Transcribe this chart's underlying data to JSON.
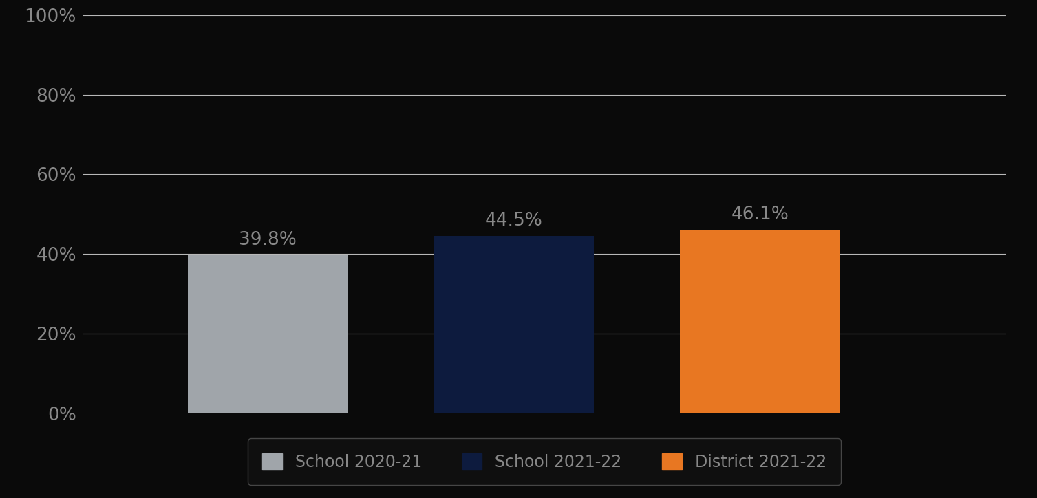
{
  "categories": [
    "School 2020-21",
    "School 2021-22",
    "District 2021-22"
  ],
  "values": [
    39.8,
    44.5,
    46.1
  ],
  "bar_colors": [
    "#a0a5aa",
    "#0d1b3e",
    "#e87722"
  ],
  "label_texts": [
    "39.8%",
    "44.5%",
    "46.1%"
  ],
  "ylim": [
    0,
    100
  ],
  "yticks": [
    0,
    20,
    40,
    60,
    80,
    100
  ],
  "ytick_labels": [
    "0%",
    "20%",
    "40%",
    "60%",
    "80%",
    "100%"
  ],
  "background_color": "#0a0a0a",
  "axes_background": "#0a0a0a",
  "text_color": "#888888",
  "label_color": "#888888",
  "grid_color": "#cccccc",
  "legend_items": [
    "School 2020-21",
    "School 2021-22",
    "District 2021-22"
  ],
  "legend_colors": [
    "#a0a5aa",
    "#0d1b3e",
    "#e87722"
  ],
  "bar_width": 0.65,
  "x_positions": [
    1,
    2,
    3
  ],
  "xlim": [
    0.25,
    4.0
  ],
  "label_fontsize": 19,
  "tick_fontsize": 19,
  "legend_fontsize": 17,
  "legend_facecolor": "#111111",
  "legend_edgecolor": "#555555",
  "legend_text_color": "#888888"
}
